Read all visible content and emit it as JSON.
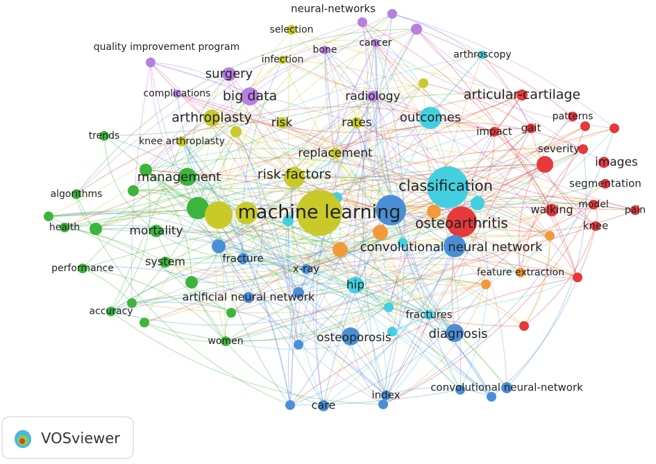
{
  "nodes": [
    {
      "label": "neural-networks"
    },
    {
      "label": "selection"
    },
    {
      "label": "quality improvement program"
    },
    {
      "label": "bone"
    },
    {
      "label": "cancer"
    },
    {
      "label": "infection"
    },
    {
      "label": "arthroscopy"
    },
    {
      "label": "surgery"
    },
    {
      "label": "complications"
    },
    {
      "label": "big data"
    },
    {
      "label": "radiology"
    },
    {
      "label": "articular-cartilage"
    },
    {
      "label": "arthroplasty"
    },
    {
      "label": "risk"
    },
    {
      "label": "rates"
    },
    {
      "label": "outcomes"
    },
    {
      "label": "trends"
    },
    {
      "label": "knee arthroplasty"
    },
    {
      "label": "impact"
    },
    {
      "label": "gait"
    },
    {
      "label": "patterns"
    },
    {
      "label": "replacement"
    },
    {
      "label": "severity"
    },
    {
      "label": "images"
    },
    {
      "label": "management"
    },
    {
      "label": "risk-factors"
    },
    {
      "label": "classification"
    },
    {
      "label": "segmentation"
    },
    {
      "label": "algorithms"
    },
    {
      "label": "model"
    },
    {
      "label": "pain"
    },
    {
      "label": "walking"
    },
    {
      "label": "machine learning"
    },
    {
      "label": "health"
    },
    {
      "label": "osteoarthritis"
    },
    {
      "label": "knee"
    },
    {
      "label": "mortality"
    },
    {
      "label": "convolutional neural network"
    },
    {
      "label": "fracture"
    },
    {
      "label": "system"
    },
    {
      "label": "performance"
    },
    {
      "label": "x-ray"
    },
    {
      "label": "feature extraction"
    },
    {
      "label": "hip"
    },
    {
      "label": "artificial neural network"
    },
    {
      "label": "accuracy"
    },
    {
      "label": "fractures"
    },
    {
      "label": "diagnosis"
    },
    {
      "label": "osteoporosis"
    },
    {
      "label": "women"
    },
    {
      "label": "convolutional neural-network"
    },
    {
      "label": "index"
    },
    {
      "label": "care"
    }
  ],
  "logo": {
    "text": "VOSviewer"
  }
}
